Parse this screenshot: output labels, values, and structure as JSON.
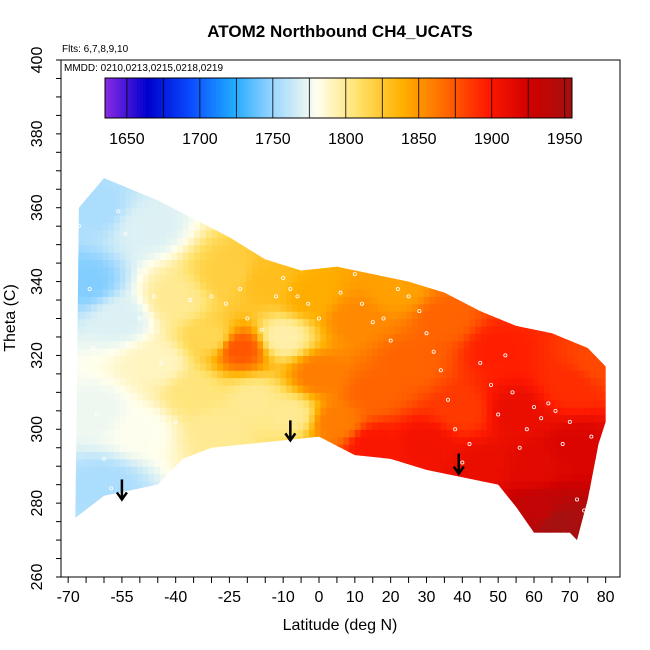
{
  "chart_data": {
    "type": "heatmap",
    "title": "ATOM2 Northbound CH4_UCATS",
    "annotations": [
      "Flts: 6,7,8,9,10",
      "MMDD: 0210,0213,0215,0218,0219"
    ],
    "xlabel": "Latitude (deg N)",
    "ylabel": "Theta (C)",
    "xlim": [
      -72,
      84
    ],
    "ylim": [
      260,
      400
    ],
    "xticks": [
      -70,
      -55,
      -40,
      -25,
      -10,
      0,
      10,
      20,
      30,
      40,
      50,
      60,
      70,
      80
    ],
    "xticks_labeled": [
      "-70",
      "-55",
      "-40",
      "-25",
      "-10",
      "0",
      "10",
      "20",
      "30",
      "40",
      "50",
      "60",
      "70",
      "80"
    ],
    "yticks": [
      260,
      280,
      300,
      320,
      340,
      360,
      380,
      400
    ],
    "yticks_labeled": [
      "260",
      "280",
      "300",
      "320",
      "340",
      "360",
      "380",
      "400"
    ],
    "colorbar": {
      "range": [
        1635,
        1955
      ],
      "ticks": [
        1650,
        1700,
        1750,
        1800,
        1850,
        1900,
        1950
      ],
      "tick_labels": [
        "1650",
        "1700",
        "1750",
        "1800",
        "1850",
        "1900",
        "1950"
      ],
      "palette": [
        "#8a2be2",
        "#0000cd",
        "#0a4aff",
        "#1ea8ff",
        "#9fd8ff",
        "#ffffee",
        "#ffe066",
        "#ffb000",
        "#ff6a00",
        "#ff1a00",
        "#d00000",
        "#a51010"
      ]
    },
    "upper_boundary": [
      [
        -67,
        360
      ],
      [
        -60,
        368
      ],
      [
        -55,
        366
      ],
      [
        -45,
        362
      ],
      [
        -35,
        357
      ],
      [
        -25,
        352
      ],
      [
        -15,
        346
      ],
      [
        -5,
        343
      ],
      [
        5,
        344
      ],
      [
        15,
        342
      ],
      [
        25,
        340
      ],
      [
        35,
        337
      ],
      [
        45,
        332
      ],
      [
        55,
        328
      ],
      [
        65,
        326
      ],
      [
        75,
        322
      ],
      [
        80,
        317
      ]
    ],
    "lower_boundary": [
      [
        -68,
        276
      ],
      [
        -60,
        282
      ],
      [
        -55,
        283
      ],
      [
        -45,
        285
      ],
      [
        -38,
        292
      ],
      [
        -30,
        295
      ],
      [
        -20,
        296
      ],
      [
        -10,
        297
      ],
      [
        0,
        298
      ],
      [
        10,
        293
      ],
      [
        20,
        292
      ],
      [
        30,
        289
      ],
      [
        40,
        287
      ],
      [
        50,
        285
      ],
      [
        55,
        279
      ],
      [
        60,
        272
      ],
      [
        70,
        272
      ],
      [
        72,
        270
      ],
      [
        75,
        281
      ],
      [
        78,
        296
      ],
      [
        80,
        302
      ]
    ],
    "field_points": [
      {
        "lat": -65,
        "theta": 340,
        "ch4": 1745
      },
      {
        "lat": -62,
        "theta": 360,
        "ch4": 1755
      },
      {
        "lat": -62,
        "theta": 305,
        "ch4": 1775
      },
      {
        "lat": -60,
        "theta": 285,
        "ch4": 1755
      },
      {
        "lat": -55,
        "theta": 330,
        "ch4": 1770
      },
      {
        "lat": -50,
        "theta": 300,
        "ch4": 1780
      },
      {
        "lat": -48,
        "theta": 355,
        "ch4": 1770
      },
      {
        "lat": -45,
        "theta": 318,
        "ch4": 1790
      },
      {
        "lat": -40,
        "theta": 335,
        "ch4": 1800
      },
      {
        "lat": -35,
        "theta": 310,
        "ch4": 1805
      },
      {
        "lat": -30,
        "theta": 325,
        "ch4": 1815
      },
      {
        "lat": -28,
        "theta": 300,
        "ch4": 1800
      },
      {
        "lat": -25,
        "theta": 342,
        "ch4": 1820
      },
      {
        "lat": -22,
        "theta": 322,
        "ch4": 1875
      },
      {
        "lat": -18,
        "theta": 308,
        "ch4": 1800
      },
      {
        "lat": -15,
        "theta": 340,
        "ch4": 1830
      },
      {
        "lat": -10,
        "theta": 325,
        "ch4": 1795
      },
      {
        "lat": -8,
        "theta": 304,
        "ch4": 1800
      },
      {
        "lat": -2,
        "theta": 336,
        "ch4": 1840
      },
      {
        "lat": 0,
        "theta": 315,
        "ch4": 1860
      },
      {
        "lat": 5,
        "theta": 302,
        "ch4": 1860
      },
      {
        "lat": 10,
        "theta": 330,
        "ch4": 1855
      },
      {
        "lat": 15,
        "theta": 310,
        "ch4": 1870
      },
      {
        "lat": 15,
        "theta": 296,
        "ch4": 1900
      },
      {
        "lat": 22,
        "theta": 338,
        "ch4": 1845
      },
      {
        "lat": 25,
        "theta": 318,
        "ch4": 1870
      },
      {
        "lat": 30,
        "theta": 296,
        "ch4": 1905
      },
      {
        "lat": 35,
        "theta": 330,
        "ch4": 1870
      },
      {
        "lat": 40,
        "theta": 305,
        "ch4": 1885
      },
      {
        "lat": 45,
        "theta": 290,
        "ch4": 1910
      },
      {
        "lat": 50,
        "theta": 322,
        "ch4": 1895
      },
      {
        "lat": 55,
        "theta": 305,
        "ch4": 1910
      },
      {
        "lat": 60,
        "theta": 290,
        "ch4": 1915
      },
      {
        "lat": 62,
        "theta": 278,
        "ch4": 1935
      },
      {
        "lat": 66,
        "theta": 275,
        "ch4": 1955
      },
      {
        "lat": 70,
        "theta": 312,
        "ch4": 1890
      },
      {
        "lat": 72,
        "theta": 295,
        "ch4": 1920
      },
      {
        "lat": 78,
        "theta": 318,
        "ch4": 1880
      }
    ],
    "sample_points": [
      [
        -67,
        355
      ],
      [
        -64,
        338
      ],
      [
        -63,
        322
      ],
      [
        -62,
        304
      ],
      [
        -60,
        292
      ],
      [
        -58,
        284
      ],
      [
        -56,
        359
      ],
      [
        -54,
        353
      ],
      [
        -50,
        330
      ],
      [
        -46,
        336
      ],
      [
        -44,
        318
      ],
      [
        -40,
        302
      ],
      [
        -36,
        335
      ],
      [
        -30,
        336
      ],
      [
        -26,
        334
      ],
      [
        -22,
        338
      ],
      [
        -20,
        330
      ],
      [
        -16,
        327
      ],
      [
        -12,
        336
      ],
      [
        -10,
        341
      ],
      [
        -8,
        338
      ],
      [
        -6,
        336
      ],
      [
        -3,
        334
      ],
      [
        0,
        330
      ],
      [
        6,
        337
      ],
      [
        10,
        342
      ],
      [
        12,
        334
      ],
      [
        15,
        329
      ],
      [
        18,
        330
      ],
      [
        20,
        324
      ],
      [
        22,
        338
      ],
      [
        25,
        336
      ],
      [
        28,
        332
      ],
      [
        30,
        326
      ],
      [
        32,
        321
      ],
      [
        34,
        316
      ],
      [
        36,
        308
      ],
      [
        38,
        300
      ],
      [
        40,
        291
      ],
      [
        42,
        296
      ],
      [
        45,
        318
      ],
      [
        48,
        312
      ],
      [
        50,
        304
      ],
      [
        52,
        320
      ],
      [
        54,
        310
      ],
      [
        56,
        295
      ],
      [
        58,
        300
      ],
      [
        60,
        306
      ],
      [
        62,
        303
      ],
      [
        64,
        307
      ],
      [
        66,
        305
      ],
      [
        68,
        296
      ],
      [
        70,
        302
      ],
      [
        72,
        281
      ],
      [
        74,
        278
      ],
      [
        76,
        298
      ]
    ],
    "arrows": [
      {
        "lat": -55,
        "theta": 281
      },
      {
        "lat": -8,
        "theta": 297
      },
      {
        "lat": 39,
        "theta": 288
      }
    ]
  }
}
